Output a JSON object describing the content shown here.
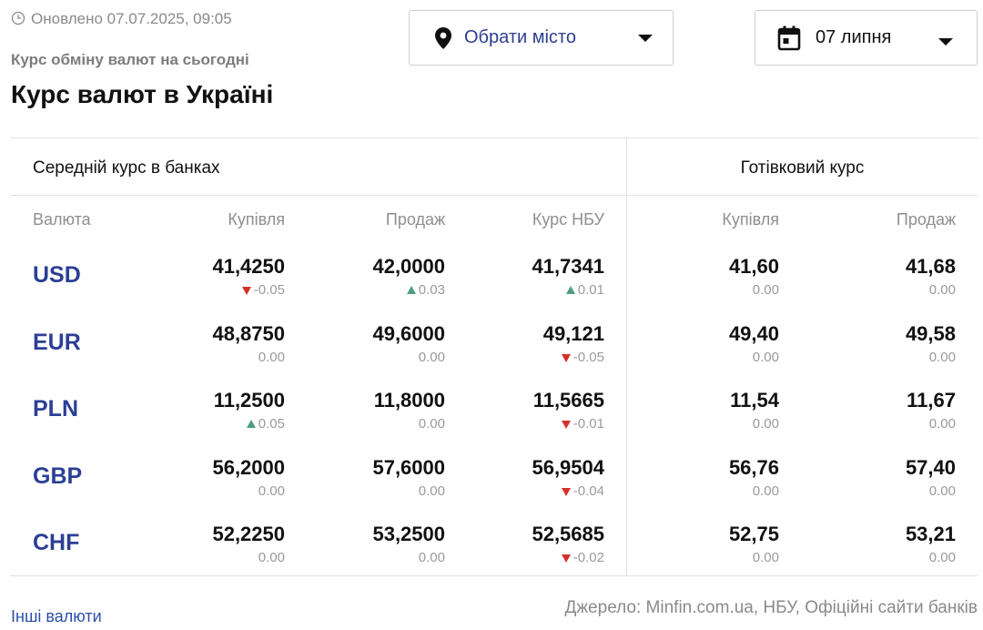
{
  "header": {
    "updated": "Оновлено 07.07.2025, 09:05",
    "subtitle": "Курс обміну валют на сьогодні",
    "title": "Курс валют в Україні"
  },
  "filters": {
    "city": {
      "label": "Обрати місто",
      "icon": "map-pin-icon"
    },
    "date": {
      "label": "07 липня",
      "icon": "calendar-icon"
    }
  },
  "table": {
    "group_left": "Середній курс в банках",
    "group_right": "Готівковий курс",
    "columns": [
      "Валюта",
      "Купівля",
      "Продаж",
      "Курс НБУ",
      "Купівля",
      "Продаж"
    ],
    "rows": [
      {
        "code": "USD",
        "buy": {
          "value": "41,4250",
          "change": "-0.05",
          "trend": "down"
        },
        "sell": {
          "value": "42,0000",
          "change": "0.03",
          "trend": "up"
        },
        "nbu": {
          "value": "41,7341",
          "change": "0.01",
          "trend": "up"
        },
        "cash_buy": {
          "value": "41,60",
          "change": "0.00",
          "trend": "none"
        },
        "cash_sell": {
          "value": "41,68",
          "change": "0.00",
          "trend": "none"
        }
      },
      {
        "code": "EUR",
        "buy": {
          "value": "48,8750",
          "change": "0.00",
          "trend": "none"
        },
        "sell": {
          "value": "49,6000",
          "change": "0.00",
          "trend": "none"
        },
        "nbu": {
          "value": "49,121",
          "change": "-0.05",
          "trend": "down"
        },
        "cash_buy": {
          "value": "49,40",
          "change": "0.00",
          "trend": "none"
        },
        "cash_sell": {
          "value": "49,58",
          "change": "0.00",
          "trend": "none"
        }
      },
      {
        "code": "PLN",
        "buy": {
          "value": "11,2500",
          "change": "0.05",
          "trend": "up"
        },
        "sell": {
          "value": "11,8000",
          "change": "0.00",
          "trend": "none"
        },
        "nbu": {
          "value": "11,5665",
          "change": "-0.01",
          "trend": "down"
        },
        "cash_buy": {
          "value": "11,54",
          "change": "0.00",
          "trend": "none"
        },
        "cash_sell": {
          "value": "11,67",
          "change": "0.00",
          "trend": "none"
        }
      },
      {
        "code": "GBP",
        "buy": {
          "value": "56,2000",
          "change": "0.00",
          "trend": "none"
        },
        "sell": {
          "value": "57,6000",
          "change": "0.00",
          "trend": "none"
        },
        "nbu": {
          "value": "56,9504",
          "change": "-0.04",
          "trend": "down"
        },
        "cash_buy": {
          "value": "56,76",
          "change": "0.00",
          "trend": "none"
        },
        "cash_sell": {
          "value": "57,40",
          "change": "0.00",
          "trend": "none"
        }
      },
      {
        "code": "CHF",
        "buy": {
          "value": "52,2250",
          "change": "0.00",
          "trend": "none"
        },
        "sell": {
          "value": "53,2500",
          "change": "0.00",
          "trend": "none"
        },
        "nbu": {
          "value": "52,5685",
          "change": "-0.02",
          "trend": "down"
        },
        "cash_buy": {
          "value": "52,75",
          "change": "0.00",
          "trend": "none"
        },
        "cash_sell": {
          "value": "53,21",
          "change": "0.00",
          "trend": "none"
        }
      }
    ]
  },
  "footer": {
    "other_currencies": "Інші валюти",
    "source": "Джерело: Minfin.com.ua, НБУ, Офіційні сайти банків"
  },
  "colors": {
    "link": "#2b3f95",
    "up": "#4c9e7a",
    "down": "#d6302b",
    "muted": "#8a8a8a",
    "border": "#e2e2e2"
  }
}
